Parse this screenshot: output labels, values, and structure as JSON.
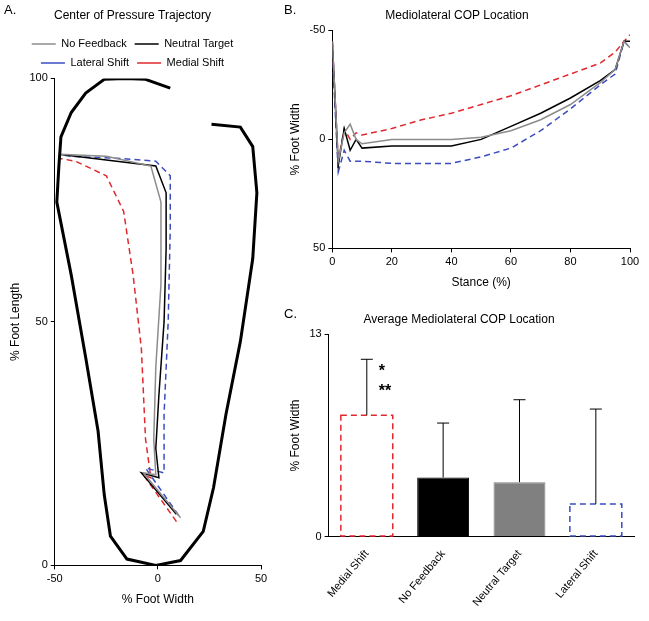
{
  "chart_data": [
    {
      "type": "line",
      "label": "A.",
      "title": "Center of Pressure Trajectory",
      "x_label": "% Foot Width",
      "y_label": "% Foot Length",
      "xlim": [
        -50,
        50
      ],
      "xticks": [
        -50,
        0,
        50
      ],
      "ylim": [
        0,
        100
      ],
      "yticks": [
        0,
        50,
        100
      ],
      "grid": false,
      "legend": "top",
      "outline": {
        "color": "#000000",
        "x": [
          6,
          -6,
          -16,
          -26,
          -35,
          -42,
          -47,
          -48,
          -49,
          -42,
          -35,
          -29,
          -26,
          -23,
          -15,
          -1,
          11,
          22,
          27,
          33,
          40,
          46,
          48,
          46,
          40,
          26
        ],
        "values": [
          98,
          99.8,
          100,
          99.8,
          97,
          93,
          88,
          82,
          74.6,
          59.6,
          42.7,
          27.6,
          14.5,
          6,
          1.3,
          0,
          1,
          7,
          16,
          31,
          46,
          63,
          76.5,
          86,
          90,
          90.6
        ]
      },
      "series": [
        {
          "name": "No Feedback",
          "color": "#8c8c8c",
          "line_style": "solid",
          "x": [
            11,
            -7,
            -1,
            -2,
            -1,
            1.5,
            1.5,
            -3.4,
            -25,
            -48
          ],
          "values": [
            9.8,
            19,
            18.6,
            25.8,
            40.8,
            57.7,
            74.6,
            82,
            84,
            84.4
          ]
        },
        {
          "name": "Neutral Target",
          "color": "#000000",
          "line_style": "solid",
          "x": [
            9,
            -8,
            0.5,
            -1,
            0.5,
            3,
            4,
            4,
            -1,
            -20,
            -40,
            -48
          ],
          "values": [
            10.5,
            19,
            18,
            24,
            35,
            50,
            65,
            76.5,
            82,
            83,
            84,
            84.4
          ]
        },
        {
          "name": "Lateral Shift",
          "color": "#3b4cc0",
          "line_style": "dashed",
          "x": [
            10,
            -6,
            3,
            3,
            5,
            6,
            6,
            -1,
            -20,
            -42,
            -48
          ],
          "values": [
            10.3,
            20,
            19,
            31,
            50,
            69,
            80,
            83,
            83.6,
            84,
            84.4
          ]
        },
        {
          "name": "Medial Shift",
          "color": "#e0282e",
          "line_style": "dashed",
          "x": [
            9,
            -7,
            -3.4,
            -6,
            -8,
            -12,
            -16.6,
            -25,
            -40,
            -48
          ],
          "values": [
            9,
            18.6,
            18,
            26,
            44.5,
            59.6,
            72.7,
            80,
            83,
            83.6
          ]
        }
      ]
    },
    {
      "type": "line",
      "label": "B.",
      "title": "Mediolateral COP Location",
      "x_label": "Stance (%)",
      "y_label": "% Foot Width",
      "xlim": [
        0,
        100
      ],
      "xticks": [
        0,
        20,
        40,
        60,
        80,
        100
      ],
      "ylim": [
        50,
        -50
      ],
      "yticks": [
        -50,
        0,
        50
      ],
      "grid": false,
      "x": [
        0,
        2,
        4,
        6,
        8,
        10,
        20,
        30,
        40,
        50,
        60,
        70,
        80,
        90,
        95,
        98,
        100
      ],
      "series": [
        {
          "name": "No Feedback",
          "color": "#8c8c8c",
          "line_style": "solid",
          "values": [
            -45,
            10,
            -3,
            -7,
            0,
            2,
            0,
            0,
            0,
            -1,
            -4,
            -9,
            -16,
            -26,
            -32,
            -45,
            -42
          ]
        },
        {
          "name": "Neutral Target",
          "color": "#000000",
          "line_style": "solid",
          "values": [
            -45,
            12,
            -5,
            5,
            0,
            4,
            3,
            3,
            3,
            0,
            -6,
            -12,
            -19,
            -27,
            -32,
            -45,
            -45
          ]
        },
        {
          "name": "Lateral Shift",
          "color": "#3b4cc0",
          "line_style": "dashed",
          "values": [
            -40,
            15,
            5,
            10,
            10,
            10,
            11,
            11,
            11,
            8,
            4,
            -4,
            -14,
            -25,
            -30,
            -45,
            -42
          ]
        },
        {
          "name": "Medial Shift",
          "color": "#e0282e",
          "line_style": "dashed",
          "values": [
            -45,
            10,
            -5,
            0,
            -3,
            -2,
            -5,
            -9,
            -12,
            -16,
            -20,
            -25,
            -30,
            -35,
            -40,
            -45,
            -48
          ]
        }
      ]
    },
    {
      "type": "bar",
      "label": "C.",
      "title": "Average Mediolateral COP Location",
      "y_label": "% Foot Width",
      "ylim": [
        0,
        13
      ],
      "yticks": [
        0,
        13
      ],
      "grid": false,
      "annotations": [
        "*",
        "**"
      ],
      "series": [
        {
          "name": "Medial Shift",
          "color": "#e0282e",
          "line_style": "dashed",
          "values": [
            7.8
          ],
          "error": [
            3.6
          ]
        },
        {
          "name": "No Feedback",
          "color": "#000000",
          "line_style": "solid",
          "values": [
            3.8
          ],
          "error": [
            3.5
          ]
        },
        {
          "name": "Neutral Target",
          "color": "#808080",
          "line_style": "solid",
          "values": [
            3.5
          ],
          "error": [
            5.3
          ]
        },
        {
          "name": "Lateral Shift",
          "color": "#3b4cc0",
          "line_style": "dashed",
          "values": [
            2.1
          ],
          "error": [
            6.1
          ]
        }
      ]
    }
  ]
}
